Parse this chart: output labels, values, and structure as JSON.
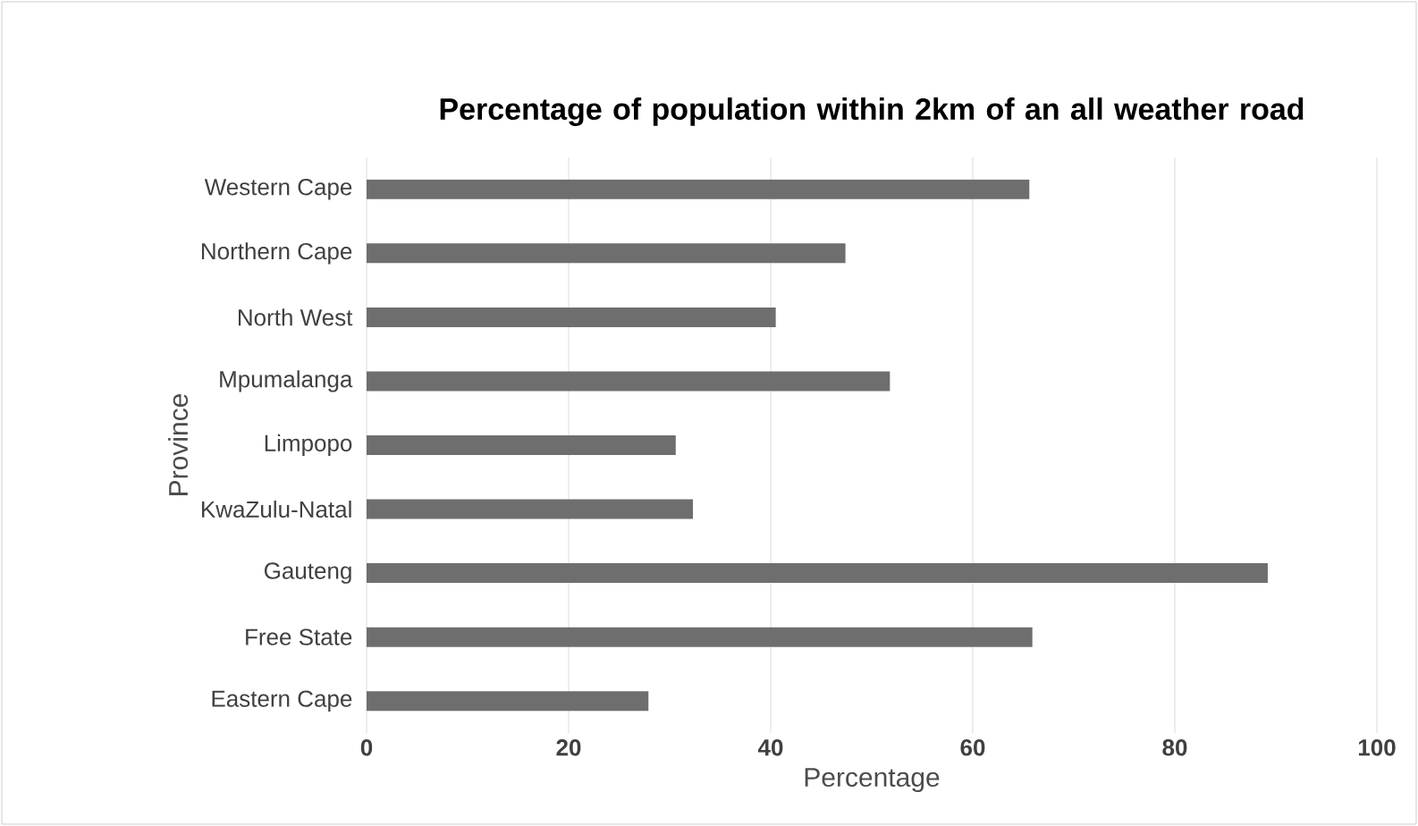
{
  "chart_data": {
    "type": "bar",
    "orientation": "horizontal",
    "title": "Percentage of population within 2km of an all weather road",
    "xlabel": "Percentage",
    "ylabel": "Province",
    "categories": [
      "Western Cape",
      "Northern Cape",
      "North West",
      "Mpumalanga",
      "Limpopo",
      "KwaZulu-Natal",
      "Gauteng",
      "Free State",
      "Eastern Cape"
    ],
    "values": [
      65.6,
      47.4,
      40.5,
      51.8,
      30.6,
      32.3,
      89.2,
      65.9,
      27.9
    ],
    "color": "#6e6e6e",
    "xlim": [
      0,
      100
    ],
    "xticks": [
      0,
      20,
      40,
      60,
      80,
      100
    ],
    "grid": "x"
  }
}
